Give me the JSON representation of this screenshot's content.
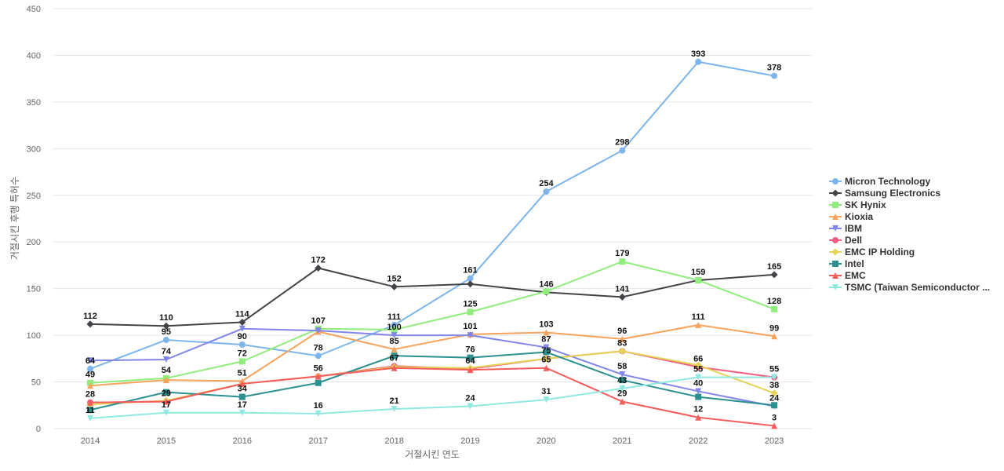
{
  "chart_data": {
    "type": "line",
    "title": "",
    "xlabel": "거절시킨 연도",
    "ylabel": "거절시킨 후행 특허수",
    "ylim": [
      0,
      450
    ],
    "yticks": [
      0,
      50,
      100,
      150,
      200,
      250,
      300,
      350,
      400,
      450
    ],
    "grid": true,
    "legend_position": "right",
    "categories": [
      "2014",
      "2015",
      "2016",
      "2017",
      "2018",
      "2019",
      "2020",
      "2021",
      "2022",
      "2023"
    ],
    "series": [
      {
        "name": "Micron Technology",
        "color": "#7cb5ec",
        "marker": "circle",
        "values": [
          64,
          95,
          90,
          78,
          111,
          161,
          254,
          298,
          393,
          378
        ]
      },
      {
        "name": "Samsung Electronics",
        "color": "#434348",
        "marker": "diamond",
        "values": [
          112,
          110,
          114,
          172,
          152,
          155,
          146,
          141,
          159,
          165
        ]
      },
      {
        "name": "SK Hynix",
        "color": "#90ed7d",
        "marker": "square",
        "values": [
          49,
          54,
          72,
          107,
          106,
          125,
          147,
          179,
          159,
          128
        ]
      },
      {
        "name": "Kioxia",
        "color": "#f7a35c",
        "marker": "triangle",
        "values": [
          46,
          52,
          51,
          104,
          85,
          101,
          103,
          96,
          111,
          99
        ]
      },
      {
        "name": "IBM",
        "color": "#8085e9",
        "marker": "triangle-down",
        "values": [
          73,
          74,
          107,
          105,
          100,
          100,
          87,
          58,
          40,
          24
        ]
      },
      {
        "name": "Dell",
        "color": "#f15c80",
        "marker": "circle",
        "values": [
          28,
          29,
          48,
          56,
          67,
          64,
          75,
          83,
          66,
          55
        ]
      },
      {
        "name": "EMC IP Holding",
        "color": "#e4d354",
        "marker": "diamond",
        "values": [
          26,
          30,
          48,
          56,
          66,
          65,
          75,
          83,
          68,
          38
        ]
      },
      {
        "name": "Intel",
        "color": "#2b908f",
        "marker": "square",
        "values": [
          20,
          39,
          34,
          49,
          78,
          76,
          82,
          52,
          34,
          25
        ]
      },
      {
        "name": "EMC",
        "color": "#f45b5b",
        "marker": "triangle",
        "values": [
          28,
          29,
          48,
          56,
          65,
          63,
          65,
          29,
          12,
          3
        ]
      },
      {
        "name": "TSMC (Taiwan Semiconductor ...",
        "color": "#91e8e1",
        "marker": "triangle-down",
        "values": [
          11,
          17,
          17,
          16,
          21,
          24,
          31,
          43,
          55,
          55
        ]
      }
    ],
    "data_labels": [
      {
        "text": "112",
        "x": "2014",
        "y": 112
      },
      {
        "text": "64",
        "x": "2014",
        "y": 64
      },
      {
        "text": "49",
        "x": "2014",
        "y": 49
      },
      {
        "text": "28",
        "x": "2014",
        "y": 28
      },
      {
        "text": "11",
        "x": "2014",
        "y": 11
      },
      {
        "text": "110",
        "x": "2015",
        "y": 110
      },
      {
        "text": "95",
        "x": "2015",
        "y": 95
      },
      {
        "text": "74",
        "x": "2015",
        "y": 74
      },
      {
        "text": "54",
        "x": "2015",
        "y": 54
      },
      {
        "text": "29",
        "x": "2015",
        "y": 29
      },
      {
        "text": "17",
        "x": "2015",
        "y": 17
      },
      {
        "text": "114",
        "x": "2016",
        "y": 114
      },
      {
        "text": "90",
        "x": "2016",
        "y": 90
      },
      {
        "text": "72",
        "x": "2016",
        "y": 72
      },
      {
        "text": "51",
        "x": "2016",
        "y": 51
      },
      {
        "text": "34",
        "x": "2016",
        "y": 34
      },
      {
        "text": "17",
        "x": "2016",
        "y": 17
      },
      {
        "text": "172",
        "x": "2017",
        "y": 172
      },
      {
        "text": "107",
        "x": "2017",
        "y": 107
      },
      {
        "text": "78",
        "x": "2017",
        "y": 78
      },
      {
        "text": "56",
        "x": "2017",
        "y": 56
      },
      {
        "text": "16",
        "x": "2017",
        "y": 16
      },
      {
        "text": "152",
        "x": "2018",
        "y": 152
      },
      {
        "text": "111",
        "x": "2018",
        "y": 111
      },
      {
        "text": "100",
        "x": "2018",
        "y": 100
      },
      {
        "text": "85",
        "x": "2018",
        "y": 85
      },
      {
        "text": "67",
        "x": "2018",
        "y": 67
      },
      {
        "text": "21",
        "x": "2018",
        "y": 21
      },
      {
        "text": "161",
        "x": "2019",
        "y": 161
      },
      {
        "text": "125",
        "x": "2019",
        "y": 125
      },
      {
        "text": "101",
        "x": "2019",
        "y": 101
      },
      {
        "text": "76",
        "x": "2019",
        "y": 76
      },
      {
        "text": "64",
        "x": "2019",
        "y": 64
      },
      {
        "text": "24",
        "x": "2019",
        "y": 24
      },
      {
        "text": "254",
        "x": "2020",
        "y": 254
      },
      {
        "text": "146",
        "x": "2020",
        "y": 146
      },
      {
        "text": "103",
        "x": "2020",
        "y": 103
      },
      {
        "text": "87",
        "x": "2020",
        "y": 87
      },
      {
        "text": "75",
        "x": "2020",
        "y": 75
      },
      {
        "text": "65",
        "x": "2020",
        "y": 65
      },
      {
        "text": "31",
        "x": "2020",
        "y": 31
      },
      {
        "text": "298",
        "x": "2021",
        "y": 298
      },
      {
        "text": "179",
        "x": "2021",
        "y": 179
      },
      {
        "text": "141",
        "x": "2021",
        "y": 141
      },
      {
        "text": "96",
        "x": "2021",
        "y": 96
      },
      {
        "text": "83",
        "x": "2021",
        "y": 83
      },
      {
        "text": "58",
        "x": "2021",
        "y": 58
      },
      {
        "text": "43",
        "x": "2021",
        "y": 43
      },
      {
        "text": "29",
        "x": "2021",
        "y": 29
      },
      {
        "text": "393",
        "x": "2022",
        "y": 393
      },
      {
        "text": "159",
        "x": "2022",
        "y": 159
      },
      {
        "text": "111",
        "x": "2022",
        "y": 111
      },
      {
        "text": "66",
        "x": "2022",
        "y": 66
      },
      {
        "text": "55",
        "x": "2022",
        "y": 55
      },
      {
        "text": "40",
        "x": "2022",
        "y": 40
      },
      {
        "text": "12",
        "x": "2022",
        "y": 12
      },
      {
        "text": "378",
        "x": "2023",
        "y": 378
      },
      {
        "text": "165",
        "x": "2023",
        "y": 165
      },
      {
        "text": "128",
        "x": "2023",
        "y": 128
      },
      {
        "text": "99",
        "x": "2023",
        "y": 99
      },
      {
        "text": "55",
        "x": "2023",
        "y": 55
      },
      {
        "text": "38",
        "x": "2023",
        "y": 38
      },
      {
        "text": "24",
        "x": "2023",
        "y": 24
      },
      {
        "text": "3",
        "x": "2023",
        "y": 3
      }
    ]
  }
}
